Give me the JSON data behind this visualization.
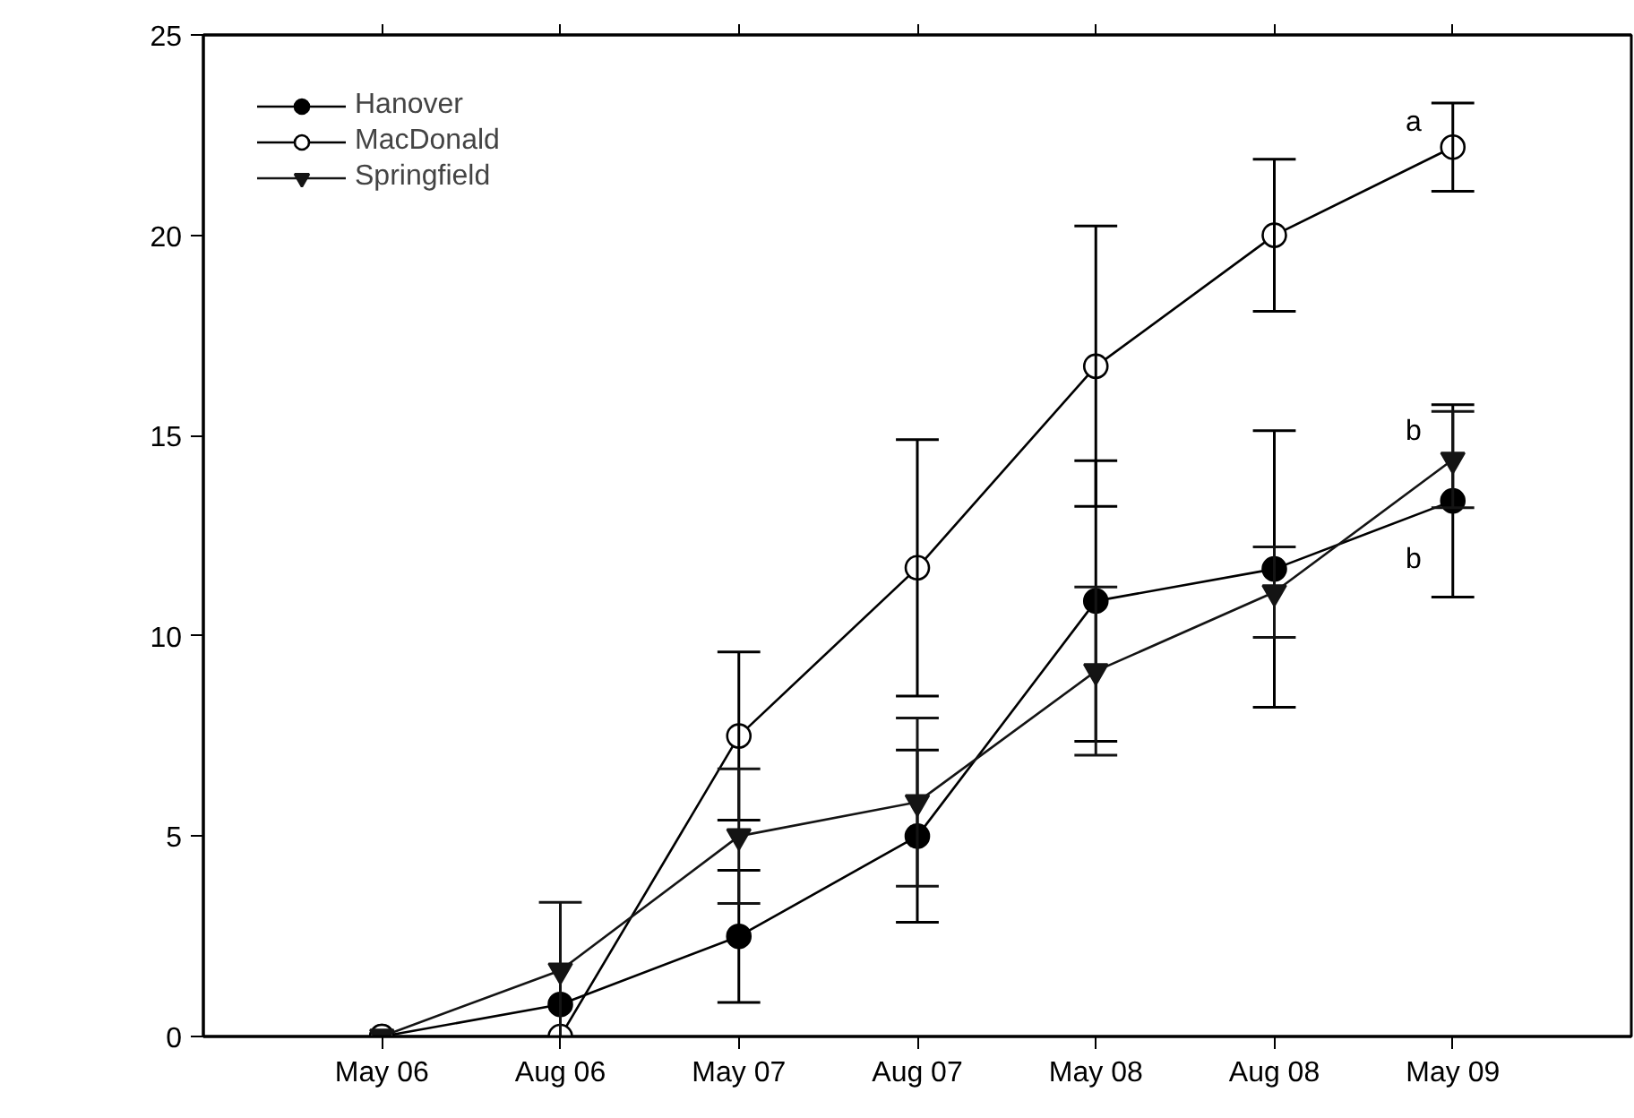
{
  "chart_data": {
    "type": "line",
    "categories": [
      "May 06",
      "Aug 06",
      "May 07",
      "Aug 07",
      "May 08",
      "Aug 08",
      "May 09"
    ],
    "ylim": [
      0,
      25
    ],
    "yticks": [
      0,
      5,
      10,
      15,
      20,
      25
    ],
    "grid": false,
    "legend": "top left",
    "line_style": "solid",
    "series": [
      {
        "name": "Hanover",
        "color": "#000000",
        "marker": "circle",
        "values": [
          0,
          0.8,
          2.5,
          5.0,
          10.87,
          11.67,
          13.37
        ],
        "errors": [
          null,
          null,
          1.65,
          2.15,
          3.5,
          3.45,
          2.4
        ]
      },
      {
        "name": "MacDonald",
        "color": "#ffffff",
        "marker": "circle",
        "values": [
          0,
          0,
          7.5,
          11.7,
          16.73,
          20.0,
          22.2
        ],
        "errors": [
          null,
          null,
          2.1,
          3.2,
          3.5,
          1.9,
          1.1
        ]
      },
      {
        "name": "Springfield",
        "color": "#141414",
        "marker": "triangle",
        "values": [
          0,
          1.65,
          5.0,
          5.85,
          9.12,
          11.09,
          14.4
        ],
        "errors": [
          null,
          1.7,
          1.68,
          2.1,
          2.1,
          1.13,
          1.2
        ]
      }
    ],
    "annotations": [
      {
        "text": "a",
        "x": "May 09",
        "y": 22.8
      },
      {
        "text": "b",
        "x": "May 09",
        "y": 15.1
      },
      {
        "text": "b",
        "x": "May 09",
        "y": 11.9
      }
    ]
  }
}
